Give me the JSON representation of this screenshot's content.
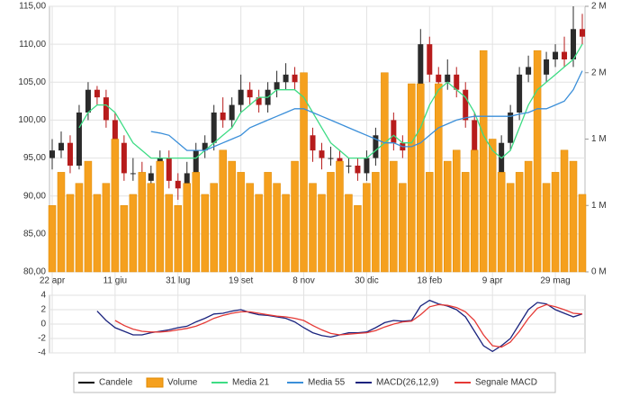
{
  "chart_data": [
    {
      "type": "candlestick",
      "categories": [
        "22 apr",
        null,
        null,
        null,
        null,
        null,
        null,
        "11 giu",
        null,
        null,
        null,
        null,
        null,
        null,
        "31 lug",
        null,
        null,
        null,
        null,
        null,
        null,
        "19 set",
        null,
        null,
        null,
        null,
        null,
        null,
        "8 nov",
        null,
        null,
        null,
        null,
        null,
        null,
        "30 dic",
        null,
        null,
        null,
        null,
        null,
        null,
        "18 feb",
        null,
        null,
        null,
        null,
        null,
        null,
        "9 apr",
        null,
        null,
        null,
        null,
        null,
        null,
        "29 mag",
        null,
        null,
        null
      ],
      "ylim": [
        80,
        115
      ],
      "yticks": [
        {
          "value": 80,
          "label": "80,00"
        },
        {
          "value": 85,
          "label": "85,00"
        },
        {
          "value": 90,
          "label": "90,00"
        },
        {
          "value": 95,
          "label": "95,00"
        },
        {
          "value": 100,
          "label": "100,00"
        },
        {
          "value": 105,
          "label": "105,00"
        },
        {
          "value": 110,
          "label": "110,00"
        },
        {
          "value": 115,
          "label": "115,00"
        }
      ],
      "y2lim": [
        0,
        2400000
      ],
      "y2ticks": [
        {
          "value": 0,
          "label": "0 M"
        },
        {
          "value": 600000,
          "label": "1 M"
        },
        {
          "value": 1200000,
          "label": "1 M"
        },
        {
          "value": 1800000,
          "label": "2 M"
        },
        {
          "value": 2400000,
          "label": "2 M"
        }
      ],
      "grid": true,
      "series": [
        {
          "name": "Candele",
          "color": "#000000",
          "up_color": "#2b2b2b",
          "down_color": "#b71c1c",
          "open": [
            95,
            96,
            97,
            94,
            101,
            104,
            103,
            100,
            97,
            93,
            93,
            92,
            93,
            95,
            92,
            91,
            93,
            96,
            97,
            101,
            100,
            102,
            104,
            103,
            102,
            104,
            105,
            106,
            105,
            98,
            96,
            95,
            95,
            94,
            94,
            93,
            95,
            98,
            100,
            97,
            96,
            97,
            110,
            106,
            105,
            106,
            104,
            100,
            93,
            89,
            93,
            97,
            101,
            106,
            107,
            106,
            108,
            109,
            108,
            112
          ],
          "high": [
            97.5,
            98.5,
            98,
            102,
            105,
            104.5,
            104,
            101,
            98,
            95,
            94.5,
            94,
            96,
            96,
            93,
            94.5,
            97,
            98,
            102,
            103,
            103,
            106,
            105,
            104,
            105,
            106.5,
            107.5,
            107,
            105.5,
            99,
            97,
            96.5,
            96,
            95,
            95,
            96,
            99,
            104.5,
            101,
            98,
            98,
            112,
            111,
            107,
            108,
            107,
            105,
            101,
            94,
            94,
            98,
            102,
            107,
            108.5,
            108,
            109,
            110,
            111,
            115,
            114
          ],
          "low": [
            93.5,
            95,
            93,
            93.5,
            100,
            102,
            99,
            96,
            92,
            92,
            91,
            91,
            92,
            91,
            89.5,
            90,
            92,
            95,
            96,
            99,
            99,
            101,
            102,
            101,
            101,
            103,
            104,
            104,
            97,
            94.5,
            93.5,
            94,
            93,
            93,
            92,
            92,
            94,
            97,
            96,
            95,
            95,
            96,
            105,
            104,
            104,
            103,
            99,
            92,
            87,
            88,
            92,
            96,
            100,
            105,
            105,
            105,
            107,
            107,
            107,
            110
          ],
          "close": [
            96,
            97,
            94,
            101,
            104,
            103,
            100,
            97,
            93,
            93,
            92,
            93,
            95,
            92,
            91,
            93,
            96,
            97,
            101,
            100,
            102,
            104,
            103,
            102,
            104,
            105,
            106,
            105,
            98,
            96,
            95,
            95,
            94,
            94,
            93,
            95,
            98,
            100,
            97,
            96,
            97,
            110,
            106,
            105,
            106,
            104,
            100,
            93,
            89,
            93,
            97,
            101,
            106,
            107,
            106,
            108,
            109,
            108,
            112,
            111
          ]
        },
        {
          "name": "Volume",
          "type": "bar",
          "axis": "y2",
          "color": "#f5a01e",
          "values": [
            600000,
            900000,
            700000,
            800000,
            1000000,
            700000,
            800000,
            1200000,
            600000,
            700000,
            900000,
            800000,
            1000000,
            700000,
            600000,
            800000,
            900000,
            700000,
            800000,
            1100000,
            1000000,
            900000,
            800000,
            700000,
            900000,
            800000,
            700000,
            1000000,
            1800000,
            800000,
            700000,
            900000,
            1000000,
            700000,
            600000,
            800000,
            900000,
            1800000,
            1000000,
            800000,
            1700000,
            1700000,
            900000,
            1700000,
            1000000,
            1100000,
            900000,
            1100000,
            2000000,
            1200000,
            900000,
            800000,
            900000,
            1000000,
            2000000,
            800000,
            900000,
            1100000,
            1000000,
            700000
          ]
        },
        {
          "name": "Media 21",
          "type": "line",
          "color": "#3ddc84",
          "values": [
            null,
            null,
            null,
            99,
            101,
            102,
            102,
            101,
            99,
            97,
            96,
            95,
            95,
            95,
            95,
            95,
            95,
            96,
            97,
            98,
            99,
            101,
            102,
            103,
            103,
            104,
            104,
            104,
            103,
            101,
            99,
            97,
            96,
            95,
            95,
            95,
            96,
            97,
            98,
            97,
            97,
            99,
            102,
            104,
            105,
            104,
            103,
            101,
            98,
            96,
            95,
            96,
            99,
            102,
            104,
            105,
            106,
            107,
            108,
            110
          ]
        },
        {
          "name": "Media 55",
          "type": "line",
          "color": "#3b8fd9",
          "values": [
            null,
            null,
            null,
            null,
            null,
            null,
            null,
            null,
            null,
            null,
            null,
            98.5,
            98.3,
            98,
            97,
            96,
            96,
            96,
            96.5,
            97,
            97.5,
            98,
            99,
            99.5,
            100,
            100.5,
            101,
            101.5,
            101.5,
            101,
            100.5,
            100,
            99.5,
            99,
            98.5,
            98,
            97.5,
            97,
            97,
            96.5,
            96.5,
            97,
            98,
            99,
            99.5,
            100,
            100.3,
            100.5,
            100.5,
            100.5,
            100.5,
            100.5,
            100.8,
            101,
            101.5,
            101.5,
            102,
            102.5,
            104,
            106.5
          ]
        }
      ]
    },
    {
      "type": "line",
      "ylim": [
        -4,
        4
      ],
      "yticks": [
        4,
        2,
        0,
        -2,
        -4
      ],
      "grid": true,
      "series": [
        {
          "name": "MACD(26,12,9)",
          "color": "#1a237e",
          "values": [
            null,
            null,
            null,
            null,
            null,
            1.8,
            0.5,
            -0.5,
            -1,
            -1.5,
            -1.5,
            -1.2,
            -1,
            -0.8,
            -0.5,
            -0.3,
            0.3,
            0.8,
            1.4,
            1.5,
            1.8,
            2,
            1.6,
            1.3,
            1.2,
            1,
            0.8,
            0.3,
            -0.5,
            -1.2,
            -1.6,
            -1.8,
            -1.5,
            -1.2,
            -1.2,
            -1.1,
            -0.5,
            0.2,
            0.5,
            0.4,
            0.5,
            2.5,
            3.3,
            2.8,
            2.5,
            2,
            1,
            -1,
            -3,
            -3.8,
            -3,
            -2,
            0,
            2,
            3,
            2.8,
            2,
            1.5,
            1,
            1.4
          ]
        },
        {
          "name": "Segnale MACD",
          "color": "#e53935",
          "values": [
            null,
            null,
            null,
            null,
            null,
            null,
            null,
            0.5,
            -0.2,
            -0.7,
            -1,
            -1.1,
            -1.1,
            -1,
            -0.8,
            -0.6,
            -0.3,
            0.2,
            0.8,
            1.2,
            1.5,
            1.7,
            1.7,
            1.5,
            1.3,
            1.1,
            1,
            0.8,
            0.5,
            -0.2,
            -0.8,
            -1.3,
            -1.5,
            -1.4,
            -1.3,
            -1.2,
            -0.9,
            -0.4,
            0,
            0.3,
            0.4,
            1.3,
            2.4,
            2.7,
            2.6,
            2.3,
            1.7,
            0.5,
            -1.5,
            -3,
            -3.2,
            -2.5,
            -1,
            0.8,
            2.2,
            2.7,
            2.4,
            2,
            1.5,
            1.4
          ]
        }
      ]
    }
  ]
}
